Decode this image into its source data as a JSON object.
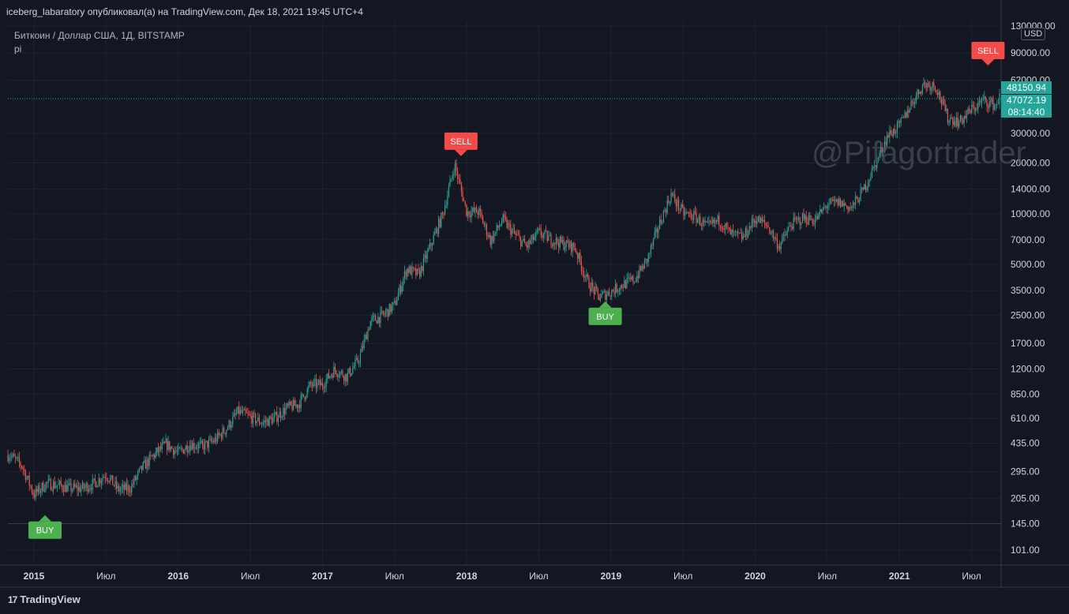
{
  "header": {
    "publish_line": "iceberg_labaratory опубликовал(а) на TradingView.com, Дек 18, 2021 19:45 UTC+4",
    "symbol_line": "Биткоин / Доллар США, 1Д, BITSTAMP",
    "indicator_name": "pi"
  },
  "watermark_text": "@Pifagortrader",
  "currency_label": "USD",
  "price_tags": {
    "last_price": "48150.94",
    "current_price": "47072.19",
    "countdown": "08:14:40"
  },
  "footer": {
    "brand": "TradingView",
    "logo": "17"
  },
  "colors": {
    "background": "#131722",
    "up": "#26a69a",
    "down": "#ef5350",
    "buy": "#4caf50",
    "sell": "#f44a4a",
    "grid": "#1f2330"
  },
  "chart_data": {
    "type": "candlestick",
    "y_scale": "log",
    "y_ticks": [
      "130000.00",
      "90000.00",
      "62000.00",
      "30000.00",
      "20000.00",
      "14000.00",
      "10000.00",
      "7000.00",
      "5000.00",
      "3500.00",
      "2500.00",
      "1700.00",
      "1200.00",
      "850.00",
      "610.00",
      "435.00",
      "295.00",
      "205.00",
      "145.00",
      "101.00"
    ],
    "x_ticks": [
      "2015",
      "Июл",
      "2016",
      "Июл",
      "2017",
      "Июл",
      "2018",
      "Июл",
      "2019",
      "Июл",
      "2020",
      "Июл",
      "2021",
      "Июл"
    ],
    "close_series": [
      {
        "date": "2014-11",
        "value": 370
      },
      {
        "date": "2014-12",
        "value": 320
      },
      {
        "date": "2015-01",
        "value": 215
      },
      {
        "date": "2015-02",
        "value": 250
      },
      {
        "date": "2015-03",
        "value": 245
      },
      {
        "date": "2015-04",
        "value": 235
      },
      {
        "date": "2015-05",
        "value": 235
      },
      {
        "date": "2015-06",
        "value": 250
      },
      {
        "date": "2015-07",
        "value": 285
      },
      {
        "date": "2015-08",
        "value": 230
      },
      {
        "date": "2015-09",
        "value": 235
      },
      {
        "date": "2015-10",
        "value": 310
      },
      {
        "date": "2015-11",
        "value": 370
      },
      {
        "date": "2015-12",
        "value": 430
      },
      {
        "date": "2016-01",
        "value": 380
      },
      {
        "date": "2016-02",
        "value": 430
      },
      {
        "date": "2016-03",
        "value": 415
      },
      {
        "date": "2016-04",
        "value": 450
      },
      {
        "date": "2016-05",
        "value": 530
      },
      {
        "date": "2016-06",
        "value": 670
      },
      {
        "date": "2016-07",
        "value": 620
      },
      {
        "date": "2016-08",
        "value": 575
      },
      {
        "date": "2016-09",
        "value": 610
      },
      {
        "date": "2016-10",
        "value": 700
      },
      {
        "date": "2016-11",
        "value": 740
      },
      {
        "date": "2016-12",
        "value": 960
      },
      {
        "date": "2017-01",
        "value": 970
      },
      {
        "date": "2017-02",
        "value": 1190
      },
      {
        "date": "2017-03",
        "value": 1080
      },
      {
        "date": "2017-04",
        "value": 1350
      },
      {
        "date": "2017-05",
        "value": 2300
      },
      {
        "date": "2017-06",
        "value": 2480
      },
      {
        "date": "2017-07",
        "value": 2870
      },
      {
        "date": "2017-08",
        "value": 4700
      },
      {
        "date": "2017-09",
        "value": 4340
      },
      {
        "date": "2017-10",
        "value": 6470
      },
      {
        "date": "2017-11",
        "value": 9900
      },
      {
        "date": "2017-12",
        "value": 19500
      },
      {
        "date": "2018-01",
        "value": 10200
      },
      {
        "date": "2018-02",
        "value": 10300
      },
      {
        "date": "2018-03",
        "value": 6900
      },
      {
        "date": "2018-04",
        "value": 9240
      },
      {
        "date": "2018-05",
        "value": 7500
      },
      {
        "date": "2018-06",
        "value": 6400
      },
      {
        "date": "2018-07",
        "value": 7730
      },
      {
        "date": "2018-08",
        "value": 7030
      },
      {
        "date": "2018-09",
        "value": 6630
      },
      {
        "date": "2018-10",
        "value": 6300
      },
      {
        "date": "2018-11",
        "value": 4000
      },
      {
        "date": "2018-12",
        "value": 3200
      },
      {
        "date": "2019-01",
        "value": 3450
      },
      {
        "date": "2019-02",
        "value": 3800
      },
      {
        "date": "2019-03",
        "value": 4100
      },
      {
        "date": "2019-04",
        "value": 5300
      },
      {
        "date": "2019-05",
        "value": 8550
      },
      {
        "date": "2019-06",
        "value": 13000
      },
      {
        "date": "2019-07",
        "value": 10100
      },
      {
        "date": "2019-08",
        "value": 9600
      },
      {
        "date": "2019-09",
        "value": 8300
      },
      {
        "date": "2019-10",
        "value": 9150
      },
      {
        "date": "2019-11",
        "value": 7550
      },
      {
        "date": "2019-12",
        "value": 7200
      },
      {
        "date": "2020-01",
        "value": 9350
      },
      {
        "date": "2020-02",
        "value": 8550
      },
      {
        "date": "2020-03",
        "value": 6400
      },
      {
        "date": "2020-04",
        "value": 8630
      },
      {
        "date": "2020-05",
        "value": 9450
      },
      {
        "date": "2020-06",
        "value": 9140
      },
      {
        "date": "2020-07",
        "value": 11350
      },
      {
        "date": "2020-08",
        "value": 11650
      },
      {
        "date": "2020-09",
        "value": 10780
      },
      {
        "date": "2020-10",
        "value": 13800
      },
      {
        "date": "2020-11",
        "value": 19700
      },
      {
        "date": "2020-12",
        "value": 29000
      },
      {
        "date": "2021-01",
        "value": 33100
      },
      {
        "date": "2021-02",
        "value": 45200
      },
      {
        "date": "2021-03",
        "value": 58800
      },
      {
        "date": "2021-04",
        "value": 57700
      },
      {
        "date": "2021-05",
        "value": 37300
      },
      {
        "date": "2021-06",
        "value": 35000
      },
      {
        "date": "2021-07",
        "value": 41500
      },
      {
        "date": "2021-08",
        "value": 47100
      },
      {
        "date": "2021-09",
        "value": 43800
      },
      {
        "date": "2021-10",
        "value": 61300
      },
      {
        "date": "2021-11",
        "value": 57000
      },
      {
        "date": "2021-12",
        "value": 47072
      }
    ],
    "signals": [
      {
        "label": "BUY",
        "date": "2015-01",
        "price": 170,
        "type": "buy"
      },
      {
        "label": "SELL",
        "date": "2017-12",
        "price": 19700,
        "type": "sell"
      },
      {
        "label": "BUY",
        "date": "2018-12",
        "price": 3150,
        "type": "buy"
      },
      {
        "label": "SELL",
        "date": "2021-11",
        "price": 68000,
        "type": "sell"
      }
    ],
    "price_line": 48150.94,
    "support_line": 145
  }
}
